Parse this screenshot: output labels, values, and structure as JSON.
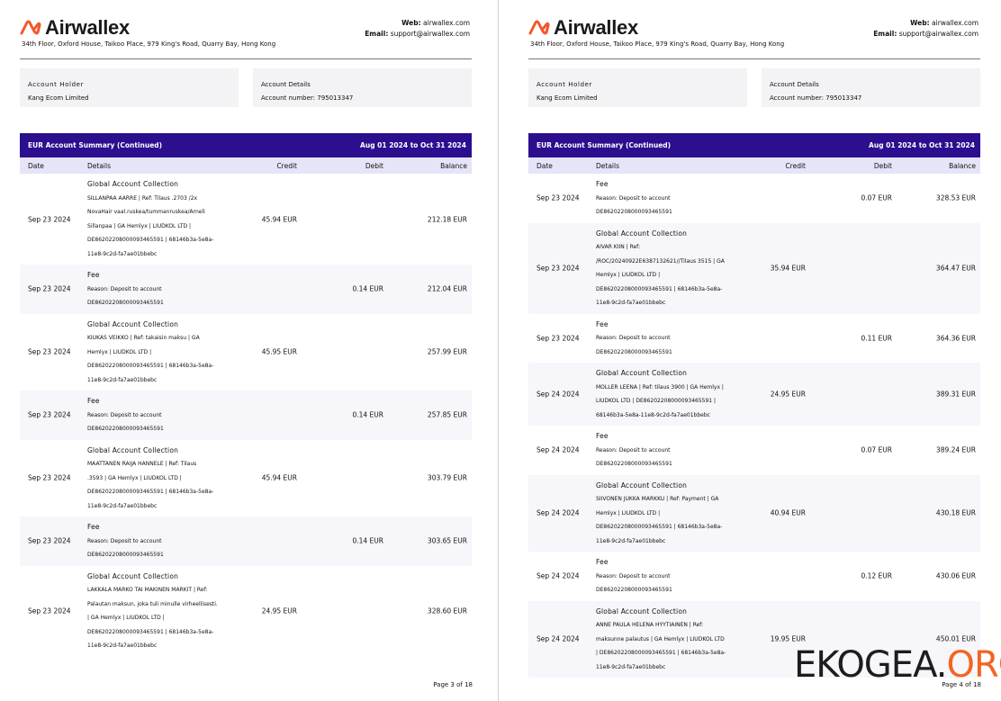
{
  "header": {
    "brand": "Airwallex",
    "address": "34th Floor, Oxford House, Taikoo Place, 979 King's Road, Quarry Bay, Hong Kong",
    "web_label": "Web:",
    "web": "airwallex.com",
    "email_label": "Email:",
    "email": "support@airwallex.com",
    "holder_label": "Account Holder",
    "holder": "Kang Ecom Limited",
    "details_label": "Account Details",
    "account_number_label": "Account number:",
    "account_number": "795013347",
    "summary_title": "EUR Account Summary (Continued)",
    "period": "Aug 01 2024 to Oct 31 2024",
    "columns": [
      "Date",
      "Details",
      "Credit",
      "Debit",
      "Balance"
    ]
  },
  "pages": [
    {
      "rows": [
        {
          "date": "Sep 23 2024",
          "title": "Global Account Collection",
          "lines": [
            "SILLANPAA AARRE | Ref: Tilaus .2703 /2x",
            "NovaHair vaal.ruskea/tummanruskea/Arneli",
            "Sillanpaa | GA Hemlyx | LIUDKOL LTD |",
            "DE86202208000093465591 | 68146b3a-5e8a-",
            "11e8-9c2d-fa7ae01bbebc"
          ],
          "credit": "45.94 EUR",
          "balance": "212.18 EUR"
        },
        {
          "date": "Sep 23 2024",
          "title": "Fee",
          "lines": [
            "Reason: Deposit to account",
            "DE86202208000093465591"
          ],
          "debit": "0.14 EUR",
          "balance": "212.04 EUR"
        },
        {
          "date": "Sep 23 2024",
          "title": "Global Account Collection",
          "lines": [
            "KIUKAS VEIKKO | Ref: takaisin maksu | GA",
            "Hemlyx | LIUDKOL LTD |",
            "DE86202208000093465591 | 68146b3a-5e8a-",
            "11e8-9c2d-fa7ae01bbebc"
          ],
          "credit": "45.95 EUR",
          "balance": "257.99 EUR"
        },
        {
          "date": "Sep 23 2024",
          "title": "Fee",
          "lines": [
            "Reason: Deposit to account",
            "DE86202208000093465591"
          ],
          "debit": "0.14 EUR",
          "balance": "257.85 EUR"
        },
        {
          "date": "Sep 23 2024",
          "title": "Global Account Collection",
          "lines": [
            "MAATTANEN RAIJA HANNELE | Ref: Tilaus",
            ".3593 | GA Hemlyx | LIUDKOL LTD |",
            "DE86202208000093465591 | 68146b3a-5e8a-",
            "11e8-9c2d-fa7ae01bbebc"
          ],
          "credit": "45.94 EUR",
          "balance": "303.79 EUR"
        },
        {
          "date": "Sep 23 2024",
          "title": "Fee",
          "lines": [
            "Reason: Deposit to account",
            "DE86202208000093465591"
          ],
          "debit": "0.14 EUR",
          "balance": "303.65 EUR"
        },
        {
          "date": "Sep 23 2024",
          "title": "Global Account Collection",
          "lines": [
            "LAKKALA MARKO TAI MAKINEN MARKIT | Ref:",
            "Palautan maksun, joka tuli minulle virheellisesti.",
            "| GA Hemlyx | LIUDKOL LTD |",
            "DE86202208000093465591 | 68146b3a-5e8a-",
            "11e8-9c2d-fa7ae01bbebc"
          ],
          "credit": "24.95 EUR",
          "balance": "328.60 EUR"
        }
      ],
      "footer": "Page 3 of 18"
    },
    {
      "rows": [
        {
          "date": "Sep 23 2024",
          "title": "Fee",
          "lines": [
            "Reason: Deposit to account",
            "DE86202208000093465591"
          ],
          "debit": "0.07 EUR",
          "balance": "328.53 EUR"
        },
        {
          "date": "Sep 23 2024",
          "title": "Global Account Collection",
          "lines": [
            "AIVAR KIIN | Ref:",
            "/ROC/20240922E6387132621//Tilaus 3515 | GA",
            "Hemlyx | LIUDKOL LTD |",
            "DE86202208000093465591 | 68146b3a-5e8a-",
            "11e8-9c2d-fa7ae01bbebc"
          ],
          "credit": "35.94 EUR",
          "balance": "364.47 EUR"
        },
        {
          "date": "Sep 23 2024",
          "title": "Fee",
          "lines": [
            "Reason: Deposit to account",
            "DE86202208000093465591"
          ],
          "debit": "0.11 EUR",
          "balance": "364.36 EUR"
        },
        {
          "date": "Sep 24 2024",
          "title": "Global Account Collection",
          "lines": [
            "MOLLER LEENA | Ref: tilaus 3900 | GA Hemlyx |",
            "LIUDKOL LTD | DE86202208000093465591 |",
            "68146b3a-5e8a-11e8-9c2d-fa7ae01bbebc"
          ],
          "credit": "24.95 EUR",
          "balance": "389.31 EUR"
        },
        {
          "date": "Sep 24 2024",
          "title": "Fee",
          "lines": [
            "Reason: Deposit to account",
            "DE86202208000093465591"
          ],
          "debit": "0.07 EUR",
          "balance": "389.24 EUR"
        },
        {
          "date": "Sep 24 2024",
          "title": "Global Account Collection",
          "lines": [
            "SIIVONEN JUKKA MARKKU | Ref: Payment | GA",
            "Hemlyx | LIUDKOL LTD |",
            "DE86202208000093465591 | 68146b3a-5e8a-",
            "11e8-9c2d-fa7ae01bbebc"
          ],
          "credit": "40.94 EUR",
          "balance": "430.18 EUR"
        },
        {
          "date": "Sep 24 2024",
          "title": "Fee",
          "lines": [
            "Reason: Deposit to account",
            "DE86202208000093465591"
          ],
          "debit": "0.12 EUR",
          "balance": "430.06 EUR"
        },
        {
          "date": "Sep 24 2024",
          "title": "Global Account Collection",
          "lines": [
            "ANNE PAULA HELENA HYYTIAINEN | Ref:",
            "maksunne palautus | GA Hemlyx | LIUDKOL LTD",
            "| DE86202208000093465591 | 68146b3a-5e8a-",
            "11e8-9c2d-fa7ae01bbebc"
          ],
          "credit": "19.95 EUR",
          "balance": "450.01 EUR"
        }
      ],
      "footer": "Page 4 of 18"
    }
  ],
  "watermark": {
    "name": "EKOGEA.",
    "tld": "ORG"
  }
}
